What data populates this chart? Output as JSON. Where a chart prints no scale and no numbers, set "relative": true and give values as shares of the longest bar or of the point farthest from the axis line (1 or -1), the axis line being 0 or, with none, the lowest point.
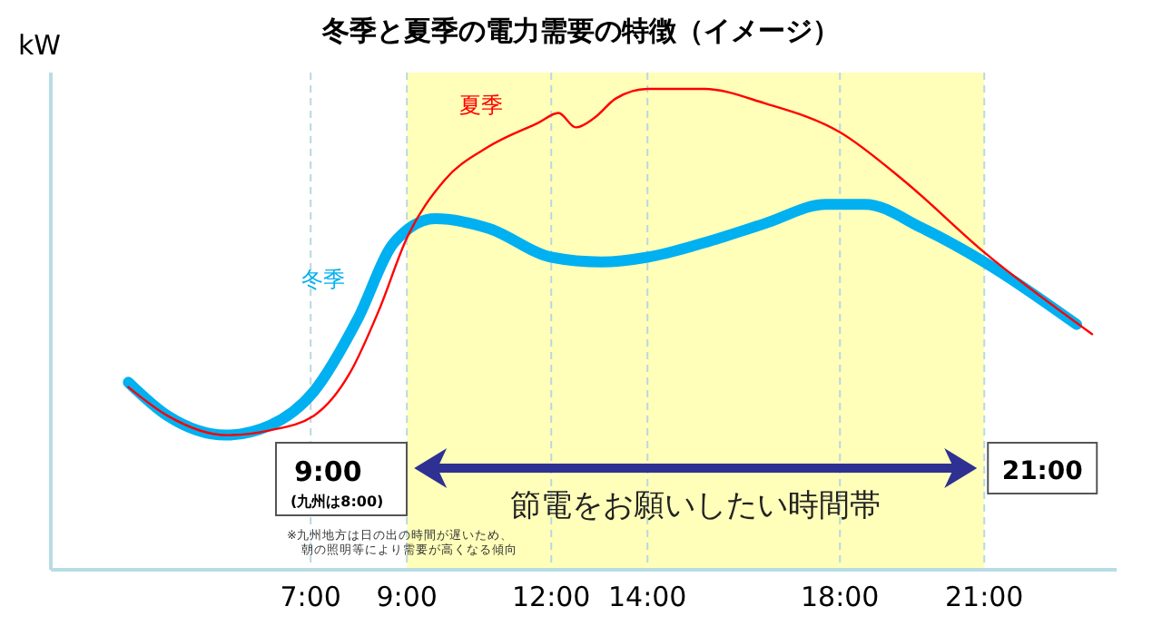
{
  "chart_data": {
    "type": "line",
    "title": "冬季と夏季の電力需要の特徴（イメージ）",
    "ylabel": "kW",
    "relative": true,
    "xlim": [
      1.6,
      23.75
    ],
    "xticks": [
      {
        "value": 7,
        "label": "7:00"
      },
      {
        "value": 9,
        "label": "9:00"
      },
      {
        "value": 12,
        "label": "12:00"
      },
      {
        "value": 14,
        "label": "14:00"
      },
      {
        "value": 18,
        "label": "18:00"
      },
      {
        "value": 21,
        "label": "21:00"
      }
    ],
    "grid": "x",
    "legend": false,
    "tick_labels": "x",
    "series": [
      {
        "name": "夏季",
        "color": "#ff0000",
        "x": [
          3.21,
          4.03,
          5.24,
          6.15,
          7.06,
          7.82,
          8.42,
          9,
          9.78,
          10.7,
          11.74,
          12.15,
          12.51,
          12.9,
          13.34,
          14,
          15.18,
          16.44,
          18,
          19.32,
          21,
          23.24
        ],
        "values": [
          0.38,
          0.32,
          0.28,
          0.29,
          0.32,
          0.41,
          0.54,
          0.69,
          0.81,
          0.88,
          0.93,
          0.95,
          0.92,
          0.94,
          0.98,
          1.0,
          1.0,
          0.97,
          0.91,
          0.81,
          0.66,
          0.49
        ]
      },
      {
        "name": "冬季",
        "color": "#00b0f0",
        "x": [
          3.21,
          4.03,
          5.24,
          6.15,
          7.06,
          7.97,
          8.73,
          9.59,
          10.7,
          12,
          13.04,
          14,
          15.18,
          16.44,
          17.71,
          18.52,
          19.72,
          21,
          22.92
        ],
        "values": [
          0.39,
          0.32,
          0.28,
          0.3,
          0.37,
          0.52,
          0.68,
          0.73,
          0.71,
          0.65,
          0.64,
          0.65,
          0.68,
          0.72,
          0.76,
          0.76,
          0.71,
          0.64,
          0.51
        ]
      }
    ],
    "bands": [
      {
        "axis": "x",
        "from": 9,
        "to": 21,
        "label": "節電をお願いしたい時間帯",
        "color": "#ffffb9"
      }
    ],
    "annotations": [
      "9:00",
      "(九州は8:00)",
      "21:00",
      "※九州地方は日の出の時間が遅いため、",
      "朝の照明等により需要が高くなる傾向"
    ]
  }
}
